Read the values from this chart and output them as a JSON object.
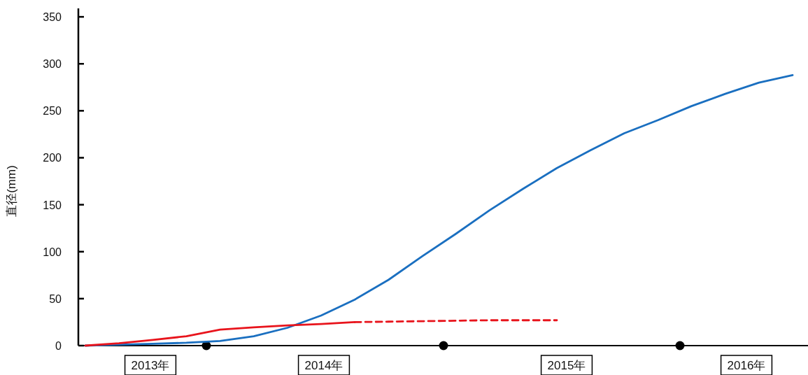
{
  "chart_data": {
    "type": "line",
    "ylabel": "直径(mm)",
    "categories": [
      null,
      null,
      null,
      null,
      null,
      null,
      null,
      null,
      null,
      null,
      null,
      null,
      null,
      null,
      null,
      null,
      null,
      null,
      null,
      null,
      null,
      null
    ],
    "ylim": [
      0,
      359
    ],
    "yticks": [
      0,
      50,
      100,
      150,
      200,
      250,
      300,
      350
    ],
    "annotations": [
      "2013年",
      "2014年",
      "2015年",
      "2016年"
    ],
    "marker": "none",
    "series": [
      {
        "color": "#1a6fc0",
        "line_style": "solid",
        "values": [
          0,
          1,
          2,
          3,
          5,
          10,
          19,
          32,
          49,
          70,
          95,
          119,
          144,
          167,
          189,
          208,
          226,
          240,
          255,
          268,
          280,
          288
        ]
      },
      {
        "color": "#e8141c",
        "line_style": "solid",
        "values": [
          0,
          2.5,
          6,
          10,
          17,
          19.5,
          21.5,
          23,
          25,
          null,
          null,
          null,
          null,
          null,
          null,
          null,
          null,
          null,
          null,
          null,
          null,
          null
        ]
      },
      {
        "color": "#e8141c",
        "line_style": "dashed",
        "values": [
          null,
          null,
          null,
          null,
          null,
          null,
          null,
          null,
          25,
          25.5,
          26,
          26.5,
          27,
          27,
          27,
          null,
          null,
          null,
          null,
          null,
          null,
          null
        ]
      }
    ]
  }
}
